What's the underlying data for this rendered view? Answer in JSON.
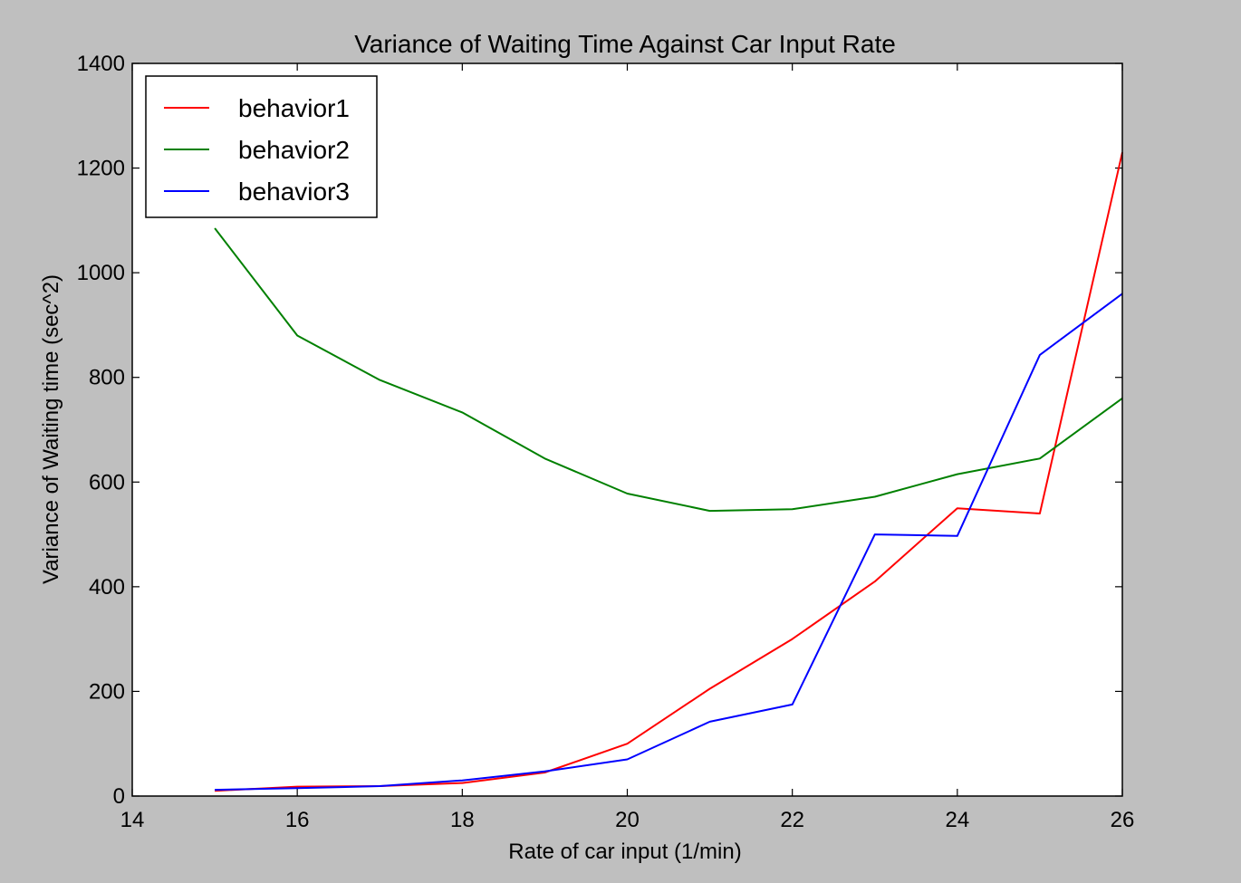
{
  "chart_data": {
    "type": "line",
    "title": "Variance of Waiting Time Against Car Input Rate",
    "xlabel": "Rate of car input (1/min)",
    "ylabel": "Variance of Waiting time (sec^2)",
    "xlim": [
      14,
      26
    ],
    "ylim": [
      0,
      1400
    ],
    "xticks": [
      14,
      16,
      18,
      20,
      22,
      24,
      26
    ],
    "yticks": [
      0,
      200,
      400,
      600,
      800,
      1000,
      1200,
      1400
    ],
    "grid": false,
    "legend_position": "top-left",
    "x": [
      15,
      16,
      17,
      18,
      19,
      20,
      21,
      22,
      23,
      24,
      25,
      26
    ],
    "series": [
      {
        "name": "behavior1",
        "color": "#ff0000",
        "values": [
          10,
          18,
          19,
          25,
          45,
          100,
          205,
          300,
          410,
          550,
          540,
          1230
        ]
      },
      {
        "name": "behavior2",
        "color": "#008000",
        "values": [
          1085,
          880,
          795,
          733,
          645,
          578,
          545,
          548,
          572,
          615,
          645,
          760
        ]
      },
      {
        "name": "behavior3",
        "color": "#0000ff",
        "values": [
          12,
          15,
          19,
          30,
          47,
          70,
          142,
          175,
          500,
          497,
          843,
          960
        ]
      }
    ]
  }
}
